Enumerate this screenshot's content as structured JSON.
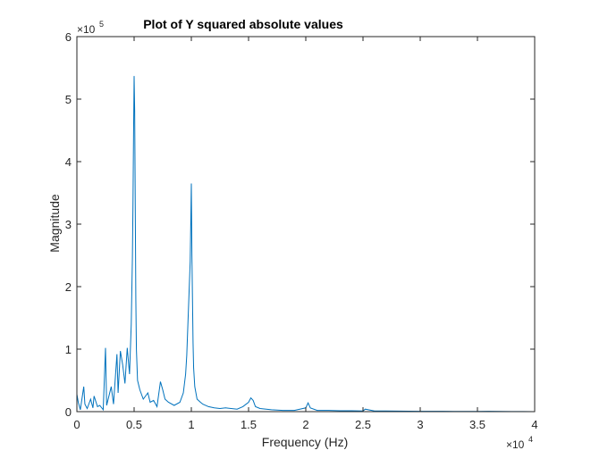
{
  "chart_data": {
    "type": "line",
    "title": "Plot of Y squared absolute values",
    "xlabel": "Frequency (Hz)",
    "ylabel": "Magnitude",
    "xlim": [
      0,
      40000
    ],
    "ylim": [
      0,
      600000
    ],
    "x_ticks": [
      0,
      5000,
      10000,
      15000,
      20000,
      25000,
      30000,
      35000,
      40000
    ],
    "x_tick_labels": [
      "0",
      "0.5",
      "1",
      "1.5",
      "2",
      "2.5",
      "3",
      "3.5",
      "4"
    ],
    "y_ticks": [
      0,
      100000,
      200000,
      300000,
      400000,
      500000,
      600000
    ],
    "y_tick_labels": [
      "0",
      "1",
      "2",
      "3",
      "4",
      "5",
      "6"
    ],
    "x_multiplier": {
      "base": "×10",
      "exponent": "4"
    },
    "y_multiplier": {
      "base": "×10",
      "exponent": "5"
    },
    "grid": false,
    "line_color": "#0072BD",
    "series": [
      {
        "x": [
          0,
          120,
          300,
          600,
          700,
          900,
          1200,
          1400,
          1500,
          1800,
          2000,
          2300,
          2500,
          2600,
          2800,
          3000,
          3200,
          3500,
          3600,
          3800,
          4000,
          4200,
          4400,
          4600,
          4750,
          4850,
          4900,
          4950,
          5000,
          5050,
          5100,
          5150,
          5200,
          5300,
          5500,
          5800,
          6000,
          6200,
          6400,
          6700,
          7000,
          7300,
          7500,
          7700,
          8000,
          8500,
          9000,
          9300,
          9500,
          9600,
          9700,
          9800,
          9900,
          9950,
          10000,
          10050,
          10100,
          10150,
          10200,
          10300,
          10500,
          10800,
          11000,
          11500,
          12000,
          12500,
          13000,
          14000,
          14500,
          15000,
          15200,
          15400,
          15600,
          16000,
          17000,
          18000,
          19000,
          20000,
          20200,
          20400,
          21000,
          22000,
          23000,
          24000,
          25000,
          25200,
          26000,
          27000,
          28000,
          29000,
          30000,
          31000,
          32000,
          33000,
          34000,
          35000,
          36000,
          37000,
          38000,
          39000,
          40000
        ],
        "y": [
          28000,
          15000,
          3000,
          40000,
          12000,
          5000,
          20000,
          6000,
          25000,
          8000,
          10000,
          3000,
          102000,
          10000,
          25000,
          40000,
          12000,
          92000,
          30000,
          97000,
          75000,
          45000,
          102000,
          60000,
          140000,
          245000,
          330000,
          440000,
          537000,
          480000,
          330000,
          180000,
          100000,
          50000,
          35000,
          20000,
          25000,
          30000,
          15000,
          18000,
          8000,
          48000,
          35000,
          20000,
          15000,
          10000,
          15000,
          30000,
          60000,
          90000,
          140000,
          190000,
          240000,
          300000,
          365000,
          250000,
          180000,
          110000,
          70000,
          40000,
          20000,
          15000,
          12000,
          8000,
          6000,
          5000,
          6000,
          4000,
          8000,
          15000,
          22000,
          18000,
          8000,
          5000,
          3000,
          2000,
          2000,
          6000,
          14000,
          6000,
          2000,
          2000,
          1500,
          1500,
          1000,
          4000,
          1000,
          1000,
          900,
          700,
          600,
          500,
          500,
          400,
          400,
          400,
          600,
          300,
          200,
          100,
          0
        ]
      }
    ]
  }
}
